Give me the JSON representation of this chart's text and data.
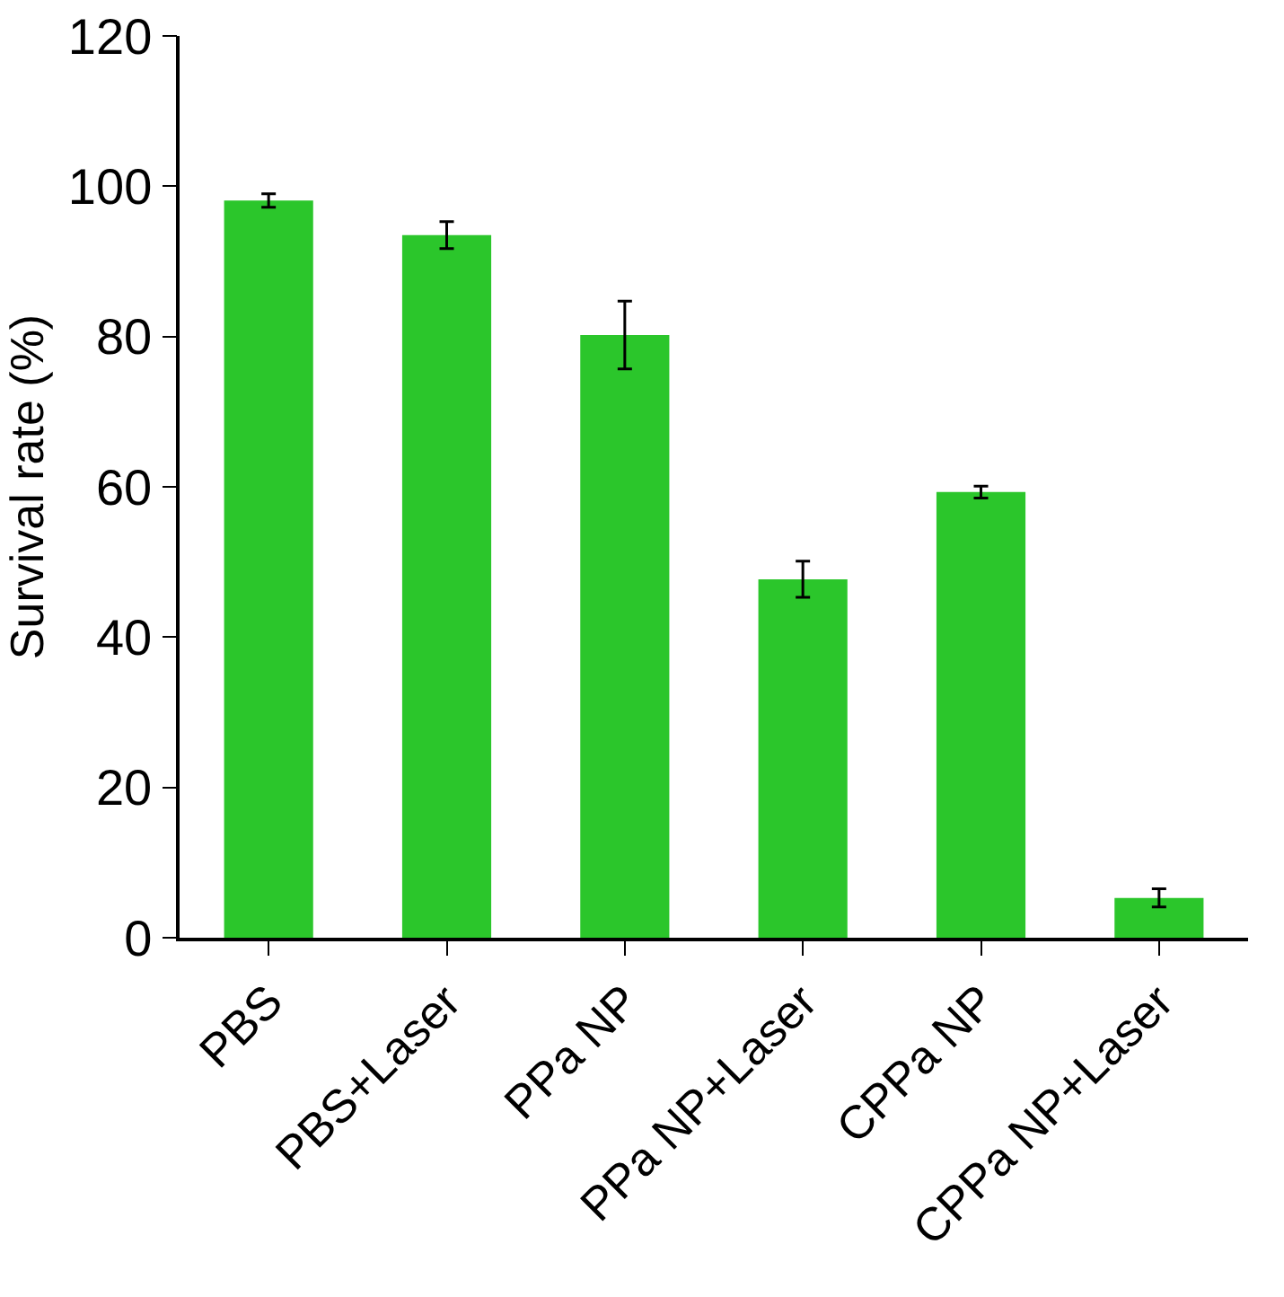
{
  "chart_data": {
    "type": "bar",
    "ylabel": "Survival rate (%)",
    "categories": [
      "PBS",
      "PBS+Laser",
      "PPa NP",
      "PPa NP+Laser",
      "CPPa NP",
      "CPPa NP+Laser"
    ],
    "values": [
      98.1,
      93.5,
      80.2,
      47.7,
      59.3,
      5.3
    ],
    "errors": [
      0.9,
      1.8,
      4.5,
      2.4,
      0.8,
      1.2
    ],
    "color": "#2bc62b",
    "ylim": [
      0,
      120
    ],
    "yticks": [
      0,
      20,
      40,
      60,
      80,
      100,
      120
    ],
    "grid": false
  }
}
